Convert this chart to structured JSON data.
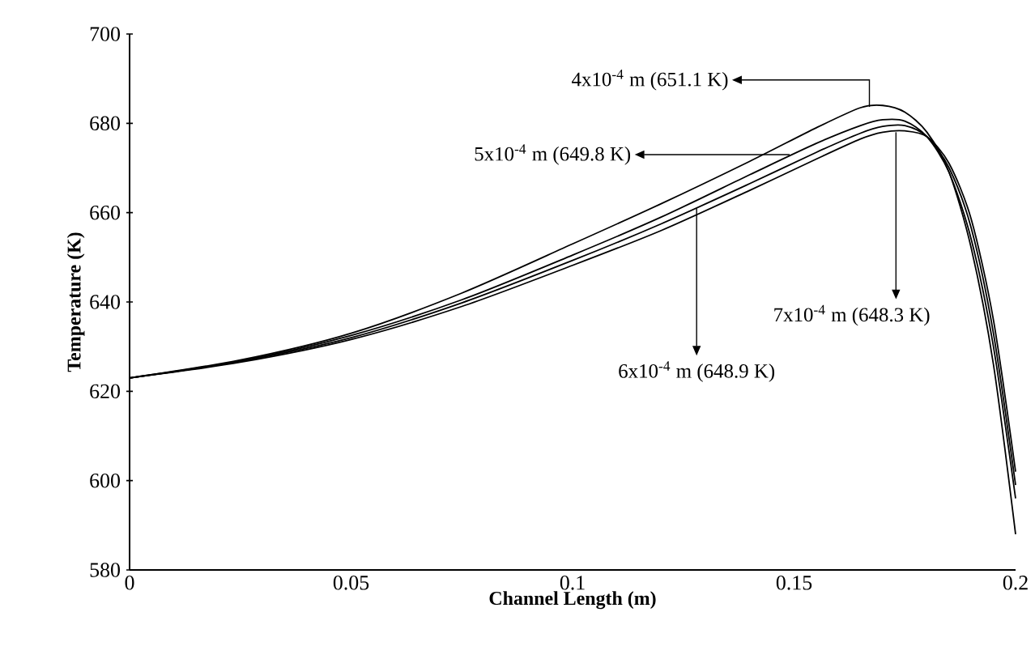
{
  "chart_data": {
    "type": "line",
    "xlabel": "Channel Length (m)",
    "ylabel": "Temperature (K)",
    "x": [
      0,
      0.025,
      0.05,
      0.075,
      0.1,
      0.12,
      0.14,
      0.155,
      0.165,
      0.17,
      0.175,
      0.18,
      0.185,
      0.19,
      0.195,
      0.2
    ],
    "series": [
      {
        "color": "#000000",
        "values": [
          623,
          627,
          633,
          642,
          653,
          662,
          671.5,
          679,
          683.5,
          684,
          682.5,
          678,
          669,
          652,
          626,
          588
        ]
      },
      {
        "color": "#000000",
        "values": [
          623,
          626.8,
          632.5,
          640.5,
          650.5,
          659,
          668.5,
          675.5,
          679.5,
          680.8,
          680.5,
          677,
          669,
          654,
          630,
          596
        ]
      },
      {
        "color": "#000000",
        "values": [
          623,
          626.7,
          632,
          639.8,
          649.3,
          657.5,
          666.5,
          673.5,
          677.8,
          679.3,
          679.5,
          677,
          670,
          656.5,
          633,
          599
        ]
      },
      {
        "color": "#000000",
        "values": [
          623,
          626.5,
          631.6,
          639,
          648.2,
          656,
          665,
          672,
          676.5,
          678,
          678.3,
          677,
          671,
          658.5,
          636,
          602
        ]
      }
    ],
    "xlim": [
      0,
      0.2
    ],
    "xticks": [
      0,
      0.05,
      0.1,
      0.15,
      0.2
    ],
    "ylim": [
      580,
      700
    ],
    "yticks": [
      580,
      600,
      620,
      640,
      660,
      680,
      700
    ],
    "grid": false,
    "legend": false,
    "marker": "none",
    "line_style": "solid",
    "annotations": [
      {
        "text": "4x10$^{-4}$ m (651.1 K)",
        "x": 0.167,
        "y": 683.7
      },
      {
        "text": "5x10$^{-4}$ m (649.8 K)",
        "x": 0.149,
        "y": 673
      },
      {
        "text": "6x10$^{-4}$ m (648.9 K)",
        "x": 0.128,
        "y": 661
      },
      {
        "text": "7x10$^{-4}$ m (648.3 K)",
        "x": 0.173,
        "y": 678
      }
    ]
  }
}
